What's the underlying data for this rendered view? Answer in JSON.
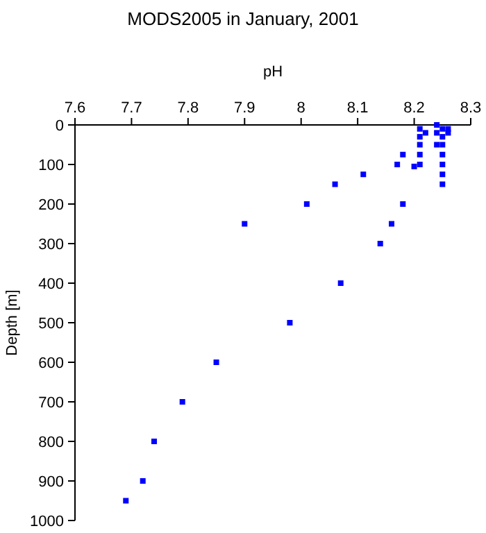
{
  "chart_data": {
    "type": "scatter",
    "title": "MODS2005 in January, 2001",
    "xlabel": "pH",
    "ylabel": "Depth [m]",
    "x": [
      8.24,
      8.26,
      8.25,
      8.21,
      8.22,
      8.24,
      8.26,
      8.21,
      8.25,
      8.21,
      8.24,
      8.25,
      8.18,
      8.21,
      8.25,
      8.17,
      8.2,
      8.21,
      8.25,
      8.11,
      8.25,
      8.06,
      8.25,
      8.01,
      8.18,
      7.9,
      8.16,
      8.14,
      8.07,
      7.98,
      7.85,
      7.79,
      7.74,
      7.72,
      7.69
    ],
    "series": [
      {
        "color": "#0000ff",
        "values": [
          0,
          10,
          10,
          10,
          20,
          20,
          20,
          30,
          30,
          50,
          50,
          50,
          75,
          75,
          75,
          100,
          105,
          100,
          100,
          125,
          125,
          150,
          150,
          200,
          200,
          250,
          250,
          300,
          400,
          500,
          600,
          700,
          800,
          900,
          950
        ]
      }
    ],
    "xlim": [
      7.6,
      8.3
    ],
    "xticks": [
      7.6,
      7.7,
      7.8,
      7.9,
      8,
      8.1,
      8.2,
      8.3
    ],
    "ylim": [
      1000,
      0
    ],
    "yticks": [
      0,
      100,
      200,
      300,
      400,
      500,
      600,
      700,
      800,
      900,
      1000
    ],
    "grid": false,
    "marker": "square"
  }
}
